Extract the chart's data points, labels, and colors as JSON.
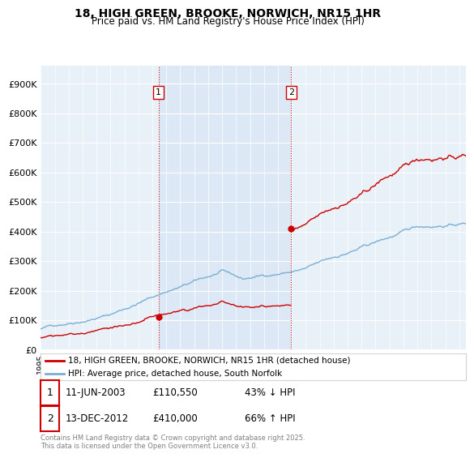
{
  "title": "18, HIGH GREEN, BROOKE, NORWICH, NR15 1HR",
  "subtitle": "Price paid vs. HM Land Registry's House Price Index (HPI)",
  "title_fontsize": 10,
  "subtitle_fontsize": 8.5,
  "ylabel_ticks": [
    "£0",
    "£100K",
    "£200K",
    "£300K",
    "£400K",
    "£500K",
    "£600K",
    "£700K",
    "£800K",
    "£900K"
  ],
  "ytick_values": [
    0,
    100000,
    200000,
    300000,
    400000,
    500000,
    600000,
    700000,
    800000,
    900000
  ],
  "ylim": [
    0,
    960000
  ],
  "xlim_start": 1995.0,
  "xlim_end": 2025.5,
  "legend_label_red": "18, HIGH GREEN, BROOKE, NORWICH, NR15 1HR (detached house)",
  "legend_label_blue": "HPI: Average price, detached house, South Norfolk",
  "sale1_date": 2003.44,
  "sale1_price": 110550,
  "sale1_label": "1",
  "sale1_text": "11-JUN-2003",
  "sale1_price_text": "£110,550",
  "sale1_pct_text": "43% ↓ HPI",
  "sale2_date": 2012.95,
  "sale2_price": 410000,
  "sale2_label": "2",
  "sale2_text": "13-DEC-2012",
  "sale2_price_text": "£410,000",
  "sale2_pct_text": "66% ↑ HPI",
  "footer": "Contains HM Land Registry data © Crown copyright and database right 2025.\nThis data is licensed under the Open Government Licence v3.0.",
  "line_color_red": "#cc0000",
  "line_color_blue": "#7aafd4",
  "vline_color": "#cc0000",
  "shade_color": "#dce8f5",
  "plot_bg_color": "#e8f0f8",
  "fig_bg_color": "#ffffff",
  "grid_color": "#ffffff"
}
